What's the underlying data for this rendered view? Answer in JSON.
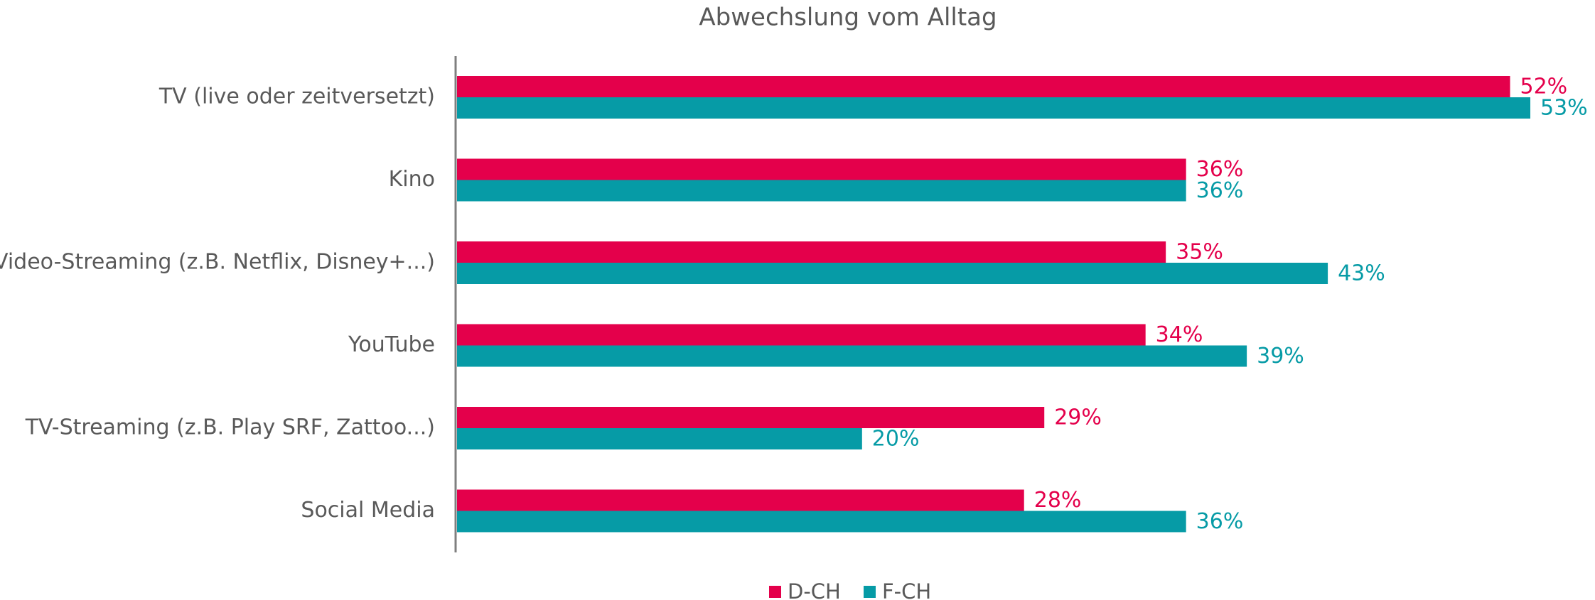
{
  "chart_data": {
    "type": "bar",
    "orientation": "horizontal",
    "title": "Abwechslung vom Alltag",
    "categories": [
      "TV (live oder zeitversetzt)",
      "Kino",
      "Video-Streaming (z.B. Netflix, Disney+...)",
      "YouTube",
      "TV-Streaming (z.B. Play SRF, Zattoo...)",
      "Social Media"
    ],
    "series": [
      {
        "name": "D-CH",
        "color": "#e4004b",
        "values": [
          52,
          36,
          35,
          34,
          29,
          28
        ],
        "value_labels": [
          "52%",
          "36%",
          "35%",
          "34%",
          "29%",
          "28%"
        ]
      },
      {
        "name": "F-CH",
        "color": "#069ba6",
        "values": [
          53,
          36,
          43,
          39,
          20,
          36
        ],
        "value_labels": [
          "53%",
          "36%",
          "43%",
          "39%",
          "20%",
          "36%"
        ]
      }
    ],
    "xlim": [
      0,
      53
    ],
    "legend": "bottom"
  }
}
